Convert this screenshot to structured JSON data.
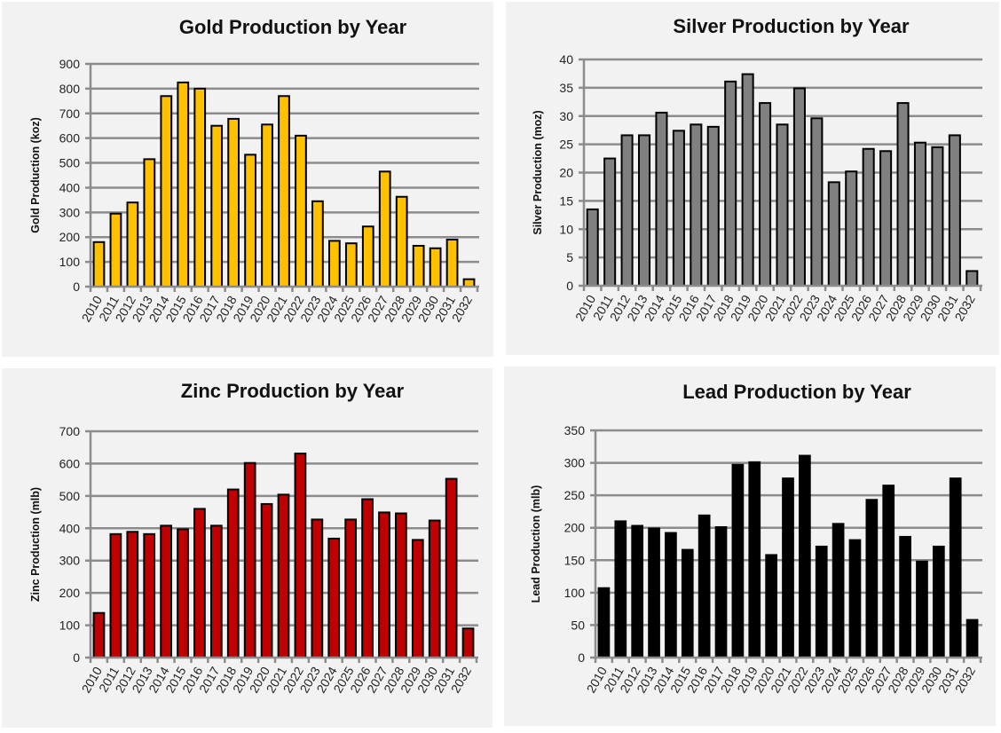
{
  "chart_data": [
    {
      "id": "gold",
      "type": "bar",
      "title": "Gold Production by Year",
      "xlabel": "",
      "ylabel": "Gold Production  (koz)",
      "ylim": [
        0,
        900
      ],
      "yticks": [
        0,
        100,
        200,
        300,
        400,
        500,
        600,
        700,
        800,
        900
      ],
      "grid": true,
      "bar_color": "#ffc000",
      "bar_edge": "#000000",
      "categories": [
        "2010",
        "2011",
        "2012",
        "2013",
        "2014",
        "2015",
        "2016",
        "2017",
        "2018",
        "2019",
        "2020",
        "2021",
        "2022",
        "2023",
        "2024",
        "2025",
        "2026",
        "2027",
        "2028",
        "2029",
        "2030",
        "2031",
        "2032"
      ],
      "values": [
        180,
        295,
        340,
        515,
        770,
        825,
        800,
        650,
        678,
        533,
        655,
        770,
        610,
        345,
        185,
        175,
        243,
        465,
        363,
        165,
        155,
        190,
        30
      ]
    },
    {
      "id": "silver",
      "type": "bar",
      "title": "Silver Production by Year",
      "xlabel": "",
      "ylabel": "Silver Production  (moz)",
      "ylim": [
        0,
        40
      ],
      "yticks": [
        0,
        5,
        10,
        15,
        20,
        25,
        30,
        35,
        40
      ],
      "grid": true,
      "bar_color": "#808080",
      "bar_edge": "#000000",
      "categories": [
        "2010",
        "2011",
        "2012",
        "2013",
        "2014",
        "2015",
        "2016",
        "2017",
        "2018",
        "2019",
        "2020",
        "2021",
        "2022",
        "2023",
        "2024",
        "2025",
        "2026",
        "2027",
        "2028",
        "2029",
        "2030",
        "2031",
        "2032"
      ],
      "values": [
        13.5,
        22.5,
        26.6,
        26.6,
        30.6,
        27.4,
        28.5,
        28.1,
        36.1,
        37.4,
        32.3,
        28.5,
        34.9,
        29.6,
        18.3,
        20.2,
        24.2,
        23.8,
        32.3,
        25.3,
        24.5,
        26.6,
        2.6
      ]
    },
    {
      "id": "zinc",
      "type": "bar",
      "title": "Zinc Production by Year",
      "xlabel": "",
      "ylabel": "Zinc Production  (mlb)",
      "ylim": [
        0,
        700
      ],
      "yticks": [
        0,
        100,
        200,
        300,
        400,
        500,
        600,
        700
      ],
      "grid": true,
      "bar_color": "#c00000",
      "bar_edge": "#000000",
      "categories": [
        "2010",
        "2011",
        "2012",
        "2013",
        "2014",
        "2015",
        "2016",
        "2017",
        "2018",
        "2019",
        "2020",
        "2021",
        "2022",
        "2023",
        "2024",
        "2025",
        "2026",
        "2027",
        "2028",
        "2029",
        "2030",
        "2031",
        "2032"
      ],
      "values": [
        138,
        382,
        389,
        382,
        408,
        397,
        460,
        408,
        520,
        602,
        475,
        504,
        631,
        427,
        368,
        427,
        490,
        449,
        446,
        364,
        424,
        553,
        90
      ]
    },
    {
      "id": "lead",
      "type": "bar",
      "title": "Lead Production by Year",
      "xlabel": "",
      "ylabel": "Lead Production  (mlb)",
      "ylim": [
        0,
        350
      ],
      "yticks": [
        0,
        50,
        100,
        150,
        200,
        250,
        300,
        350
      ],
      "grid": true,
      "bar_color": "#000000",
      "bar_edge": "#000000",
      "categories": [
        "2010",
        "2011",
        "2012",
        "2013",
        "2014",
        "2015",
        "2016",
        "2017",
        "2018",
        "2019",
        "2020",
        "2021",
        "2022",
        "2023",
        "2024",
        "2025",
        "2026",
        "2027",
        "2028",
        "2029",
        "2030",
        "2031",
        "2032"
      ],
      "values": [
        107,
        210,
        203,
        199,
        192,
        166,
        219,
        201,
        297,
        301,
        158,
        276,
        311,
        171,
        206,
        181,
        243,
        265,
        186,
        148,
        171,
        276,
        58
      ]
    }
  ]
}
